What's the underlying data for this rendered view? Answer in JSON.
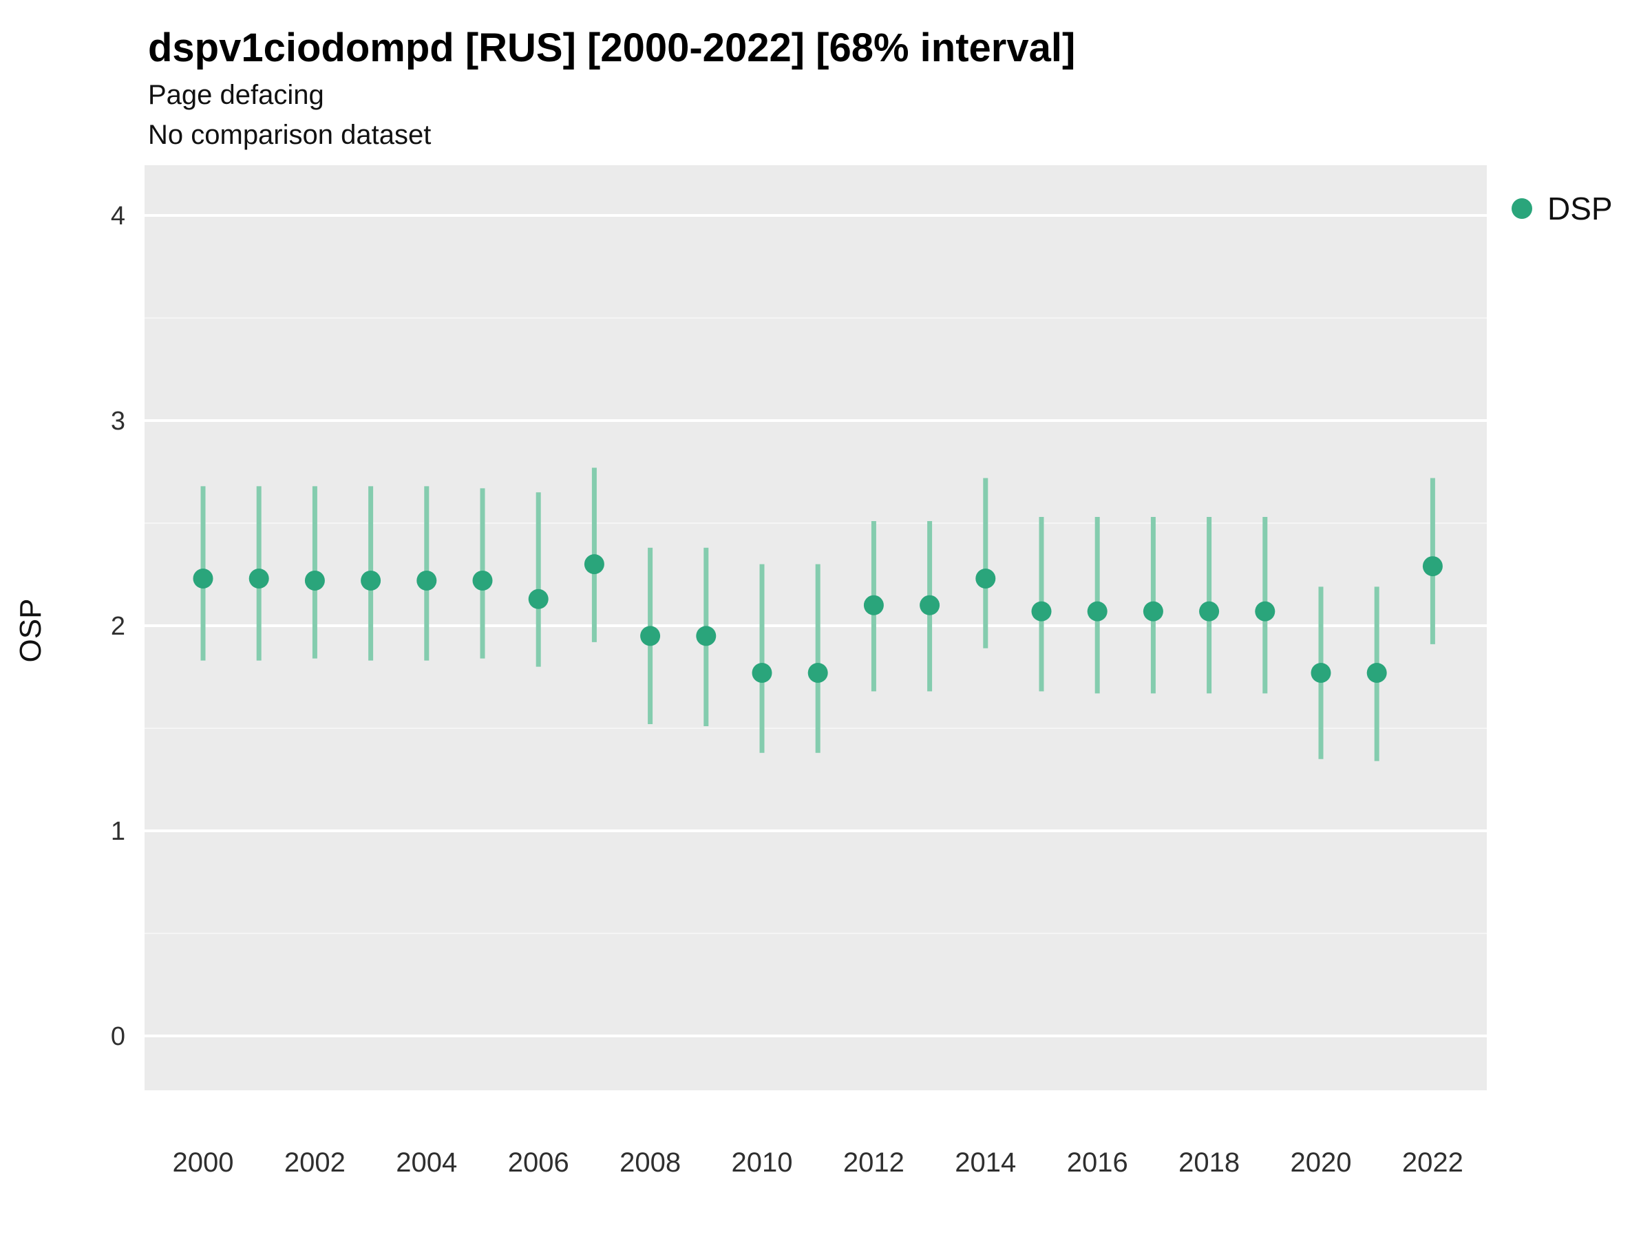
{
  "chart_data": {
    "type": "scatter",
    "title": "dspv1ciodompd [RUS] [2000-2022] [68% interval]",
    "subtitle": "Page defacing",
    "note": "No comparison dataset",
    "xlabel": "",
    "ylabel": "OSP",
    "ylim": [
      -0.27,
      4.22
    ],
    "yticks": [
      0,
      1,
      2,
      3,
      4
    ],
    "xticks": [
      2000,
      2002,
      2004,
      2006,
      2008,
      2010,
      2012,
      2014,
      2016,
      2018,
      2020,
      2022
    ],
    "grid": "on",
    "legend_position": "right",
    "legend": [
      {
        "label": "DSP",
        "color": "#2aa57b"
      }
    ],
    "colors": {
      "point": "#2aa57b",
      "interval": "#84ccae",
      "panel": "#ebebeb",
      "grid_major": "#ffffff",
      "grid_minor": "#f5f5f5",
      "tick_text": "#2f2f2f"
    },
    "series": [
      {
        "name": "DSP",
        "x": [
          2000,
          2001,
          2002,
          2003,
          2004,
          2005,
          2006,
          2007,
          2008,
          2009,
          2010,
          2011,
          2012,
          2013,
          2014,
          2015,
          2016,
          2017,
          2018,
          2019,
          2020,
          2021,
          2022
        ],
        "y": [
          2.23,
          2.23,
          2.22,
          2.22,
          2.22,
          2.22,
          2.13,
          2.3,
          1.95,
          1.95,
          1.77,
          1.77,
          2.1,
          2.1,
          2.23,
          2.07,
          2.07,
          2.07,
          2.07,
          2.07,
          1.77,
          1.77,
          2.29
        ],
        "ylo": [
          1.83,
          1.83,
          1.84,
          1.83,
          1.83,
          1.84,
          1.8,
          1.92,
          1.52,
          1.51,
          1.38,
          1.38,
          1.68,
          1.68,
          1.89,
          1.68,
          1.67,
          1.67,
          1.67,
          1.67,
          1.35,
          1.34,
          1.91
        ],
        "yhi": [
          2.68,
          2.68,
          2.68,
          2.68,
          2.68,
          2.67,
          2.65,
          2.77,
          2.38,
          2.38,
          2.3,
          2.3,
          2.51,
          2.51,
          2.72,
          2.53,
          2.53,
          2.53,
          2.53,
          2.53,
          2.19,
          2.19,
          2.72
        ]
      }
    ]
  }
}
